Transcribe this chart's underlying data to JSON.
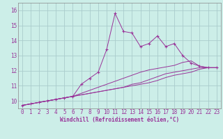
{
  "background_color": "#cceee8",
  "grid_color": "#aacccc",
  "line_color": "#993399",
  "marker": "+",
  "xlabel": "Windchill (Refroidissement éolien,°C)",
  "xlim": [
    -0.5,
    23.5
  ],
  "ylim": [
    9.5,
    16.5
  ],
  "yticks": [
    10,
    11,
    12,
    13,
    14,
    15,
    16
  ],
  "xticks": [
    0,
    1,
    2,
    3,
    4,
    5,
    6,
    7,
    8,
    9,
    10,
    11,
    12,
    13,
    14,
    15,
    16,
    17,
    18,
    19,
    20,
    21,
    22,
    23
  ],
  "series": [
    [
      9.7,
      9.8,
      9.9,
      10.0,
      10.1,
      10.2,
      10.3,
      11.1,
      11.5,
      11.9,
      13.4,
      15.8,
      14.6,
      14.5,
      13.6,
      13.8,
      14.3,
      13.6,
      13.8,
      13.0,
      12.5,
      12.3,
      12.2,
      12.2
    ],
    [
      9.7,
      9.8,
      9.9,
      10.0,
      10.1,
      10.2,
      10.3,
      10.5,
      10.7,
      10.9,
      11.1,
      11.3,
      11.5,
      11.7,
      11.9,
      12.05,
      12.15,
      12.25,
      12.35,
      12.55,
      12.65,
      12.3,
      12.2,
      12.2
    ],
    [
      9.7,
      9.8,
      9.9,
      10.0,
      10.1,
      10.2,
      10.3,
      10.4,
      10.5,
      10.6,
      10.7,
      10.8,
      10.9,
      11.1,
      11.2,
      11.4,
      11.6,
      11.8,
      11.9,
      12.0,
      12.1,
      12.2,
      12.2,
      12.2
    ],
    [
      9.7,
      9.8,
      9.9,
      10.0,
      10.1,
      10.2,
      10.3,
      10.4,
      10.5,
      10.6,
      10.7,
      10.8,
      10.9,
      11.0,
      11.1,
      11.2,
      11.35,
      11.55,
      11.7,
      11.8,
      11.9,
      12.1,
      12.2,
      12.2
    ]
  ],
  "show_markers": [
    true,
    false,
    false,
    false
  ],
  "xlabel_fontsize": 5.5,
  "tick_fontsize": 5.5
}
